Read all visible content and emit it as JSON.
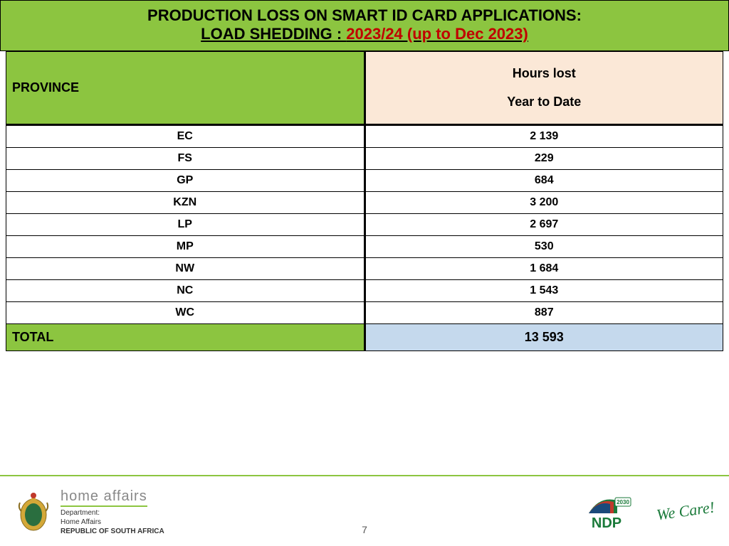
{
  "title": {
    "line1": "PRODUCTION LOSS ON SMART ID CARD APPLICATIONS:",
    "line2_prefix": "LOAD SHEDDING : ",
    "line2_period": "2023/24 (up to Dec 2023)"
  },
  "headers": {
    "province": "PROVINCE",
    "hours_line1": "Hours lost",
    "hours_line2": "Year to Date"
  },
  "rows": [
    {
      "province": "EC",
      "value": "2 139"
    },
    {
      "province": "FS",
      "value": "229"
    },
    {
      "province": "GP",
      "value": "684"
    },
    {
      "province": "KZN",
      "value": "3 200"
    },
    {
      "province": "LP",
      "value": "2 697"
    },
    {
      "province": "MP",
      "value": "530"
    },
    {
      "province": "NW",
      "value": "1 684"
    },
    {
      "province": "NC",
      "value": "1 543"
    },
    {
      "province": "WC",
      "value": "887"
    }
  ],
  "total": {
    "label": "TOTAL",
    "value": "13 593"
  },
  "footer": {
    "dept_brand": "home affairs",
    "dept_line1": "Department:",
    "dept_line2": "Home Affairs",
    "dept_line3": "REPUBLIC OF SOUTH AFRICA",
    "page_number": "7",
    "ndp_year": "2030",
    "ndp_label": "NDP",
    "slogan": "We Care!"
  },
  "colors": {
    "green": "#8cc540",
    "peach": "#fbe8d7",
    "lightblue": "#c5d9ed",
    "red": "#c00000"
  }
}
